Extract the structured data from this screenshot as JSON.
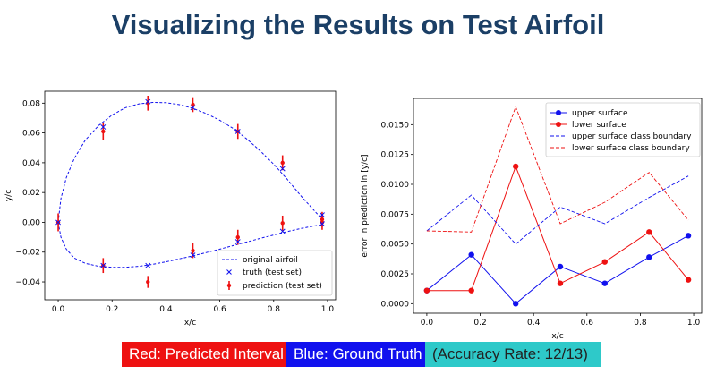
{
  "title": "Visualizing the Results on Test Airfoil",
  "badges": {
    "red": "Red: Predicted Interval",
    "blue": "Blue: Ground Truth",
    "accuracy": "(Accuracy Rate: 12/13)"
  },
  "colors": {
    "title": "#1b3f66",
    "red": "#ee1111",
    "blue": "#1111ee",
    "cyan": "#2ec9c9"
  },
  "chart_data": [
    {
      "type": "line",
      "xlabel": "x/c",
      "ylabel": "y/c",
      "xlim": [
        -0.05,
        1.03
      ],
      "ylim": [
        -0.052,
        0.088
      ],
      "xticks": [
        0.0,
        0.2,
        0.4,
        0.6,
        0.8,
        1.0
      ],
      "xtick_labels": [
        "0.0",
        "0.2",
        "0.4",
        "0.6",
        "0.8",
        "1.0"
      ],
      "yticks": [
        -0.04,
        -0.02,
        0.0,
        0.02,
        0.04,
        0.06,
        0.08
      ],
      "ytick_labels": [
        "−0.04",
        "−0.02",
        "0.00",
        "0.02",
        "0.04",
        "0.06",
        "0.08"
      ],
      "legend_position": "lower-right",
      "airfoil_upper": {
        "x": [
          0.0,
          0.01,
          0.03,
          0.06,
          0.1,
          0.15,
          0.2,
          0.25,
          0.3,
          0.35,
          0.4,
          0.45,
          0.5,
          0.55,
          0.6,
          0.65,
          0.7,
          0.75,
          0.8,
          0.85,
          0.9,
          0.95,
          0.98
        ],
        "y": [
          0.0,
          0.016,
          0.03,
          0.043,
          0.055,
          0.065,
          0.072,
          0.077,
          0.0795,
          0.0805,
          0.0803,
          0.079,
          0.0765,
          0.073,
          0.0685,
          0.063,
          0.056,
          0.048,
          0.039,
          0.029,
          0.018,
          0.008,
          0.002
        ]
      },
      "airfoil_lower": {
        "x": [
          0.0,
          0.01,
          0.03,
          0.06,
          0.1,
          0.15,
          0.2,
          0.25,
          0.3,
          0.35,
          0.4,
          0.45,
          0.5,
          0.55,
          0.6,
          0.65,
          0.7,
          0.75,
          0.8,
          0.85,
          0.9,
          0.95,
          0.98
        ],
        "y": [
          0.0,
          -0.01,
          -0.018,
          -0.024,
          -0.0275,
          -0.0295,
          -0.0302,
          -0.0302,
          -0.0295,
          -0.0282,
          -0.0265,
          -0.0245,
          -0.0225,
          -0.0203,
          -0.018,
          -0.0156,
          -0.0132,
          -0.0108,
          -0.0085,
          -0.0062,
          -0.0042,
          -0.0024,
          -0.0016
        ]
      },
      "truth": {
        "x": [
          0.0,
          0.167,
          0.333,
          0.5,
          0.667,
          0.833,
          0.98,
          0.167,
          0.333,
          0.5,
          0.667,
          0.833,
          0.98
        ],
        "y": [
          0.0,
          0.064,
          0.081,
          0.077,
          0.061,
          0.036,
          0.005,
          -0.029,
          -0.029,
          -0.022,
          -0.013,
          -0.006,
          -0.001
        ]
      },
      "prediction": {
        "x": [
          0.0,
          0.167,
          0.333,
          0.5,
          0.667,
          0.833,
          0.98,
          0.167,
          0.333,
          0.5,
          0.667,
          0.833,
          0.98
        ],
        "y": [
          0.0,
          0.061,
          0.08,
          0.079,
          0.061,
          0.04,
          0.002,
          -0.029,
          -0.04,
          -0.019,
          -0.01,
          -0.0005,
          0.0
        ],
        "err": [
          0.006,
          0.006,
          0.005,
          0.005,
          0.005,
          0.005,
          0.005,
          0.005,
          0.004,
          0.005,
          0.005,
          0.005,
          0.005
        ]
      },
      "legend": [
        "original airfoil",
        "truth (test set)",
        "prediction (test set)"
      ]
    },
    {
      "type": "line",
      "xlabel": "x/c",
      "ylabel": "error in prediction in [y/c]",
      "xlim": [
        -0.05,
        1.03
      ],
      "ylim": [
        -0.0008,
        0.0172
      ],
      "xticks": [
        0.0,
        0.2,
        0.4,
        0.6,
        0.8,
        1.0
      ],
      "xtick_labels": [
        "0.0",
        "0.2",
        "0.4",
        "0.6",
        "0.8",
        "1.0"
      ],
      "yticks": [
        0.0,
        0.0025,
        0.005,
        0.0075,
        0.01,
        0.0125,
        0.015
      ],
      "ytick_labels": [
        "0.0000",
        "0.0025",
        "0.0050",
        "0.0075",
        "0.0100",
        "0.0125",
        "0.0150"
      ],
      "legend_position": "top-right",
      "x": [
        0.0,
        0.167,
        0.333,
        0.5,
        0.667,
        0.833,
        0.98
      ],
      "series": [
        {
          "name": "upper surface",
          "style": "solid-marker",
          "color": "#1111ee",
          "values": [
            0.0011,
            0.0041,
            0.0,
            0.0031,
            0.0017,
            0.0039,
            0.0057
          ]
        },
        {
          "name": "lower surface",
          "style": "solid-marker",
          "color": "#ee1111",
          "values": [
            0.0011,
            0.0011,
            0.0115,
            0.0017,
            0.0035,
            0.006,
            0.002
          ]
        },
        {
          "name": "upper surface class boundary",
          "style": "dashed",
          "color": "#1111ee",
          "values": [
            0.0061,
            0.0091,
            0.005,
            0.0081,
            0.0067,
            0.0089,
            0.0107
          ]
        },
        {
          "name": "lower surface class boundary",
          "style": "dashed",
          "color": "#ee1111",
          "values": [
            0.0061,
            0.006,
            0.0165,
            0.0067,
            0.0085,
            0.011,
            0.007
          ]
        }
      ]
    }
  ]
}
